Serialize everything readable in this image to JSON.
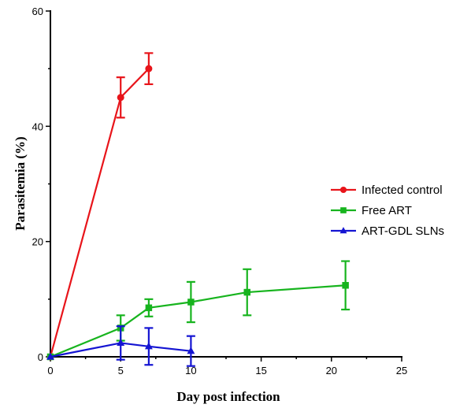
{
  "chart_data": {
    "type": "line",
    "xlabel": "Day post infection",
    "ylabel": "Parasitemia (%)",
    "xlim": [
      0,
      25
    ],
    "ylim": [
      0,
      60
    ],
    "xticks": [
      "0",
      "5",
      "10",
      "15",
      "20",
      "25"
    ],
    "yticks": [
      "0",
      "20",
      "40",
      "60"
    ],
    "grid": false,
    "legend_position": "right",
    "series": [
      {
        "name": "Infected control",
        "color": "#e8141a",
        "marker": "circle",
        "x": [
          0,
          5,
          7
        ],
        "y": [
          0,
          45,
          50
        ],
        "err": [
          0,
          3.5,
          2.7
        ]
      },
      {
        "name": "Free ART",
        "color": "#17b41e",
        "marker": "square",
        "x": [
          0,
          5,
          7,
          10,
          14,
          21
        ],
        "y": [
          0,
          5,
          8.5,
          9.5,
          11.2,
          12.4
        ],
        "err": [
          0,
          2.2,
          1.5,
          3.5,
          4,
          4.2
        ]
      },
      {
        "name": "ART-GDL SLNs",
        "color": "#1414d2",
        "marker": "triangle",
        "x": [
          0,
          5,
          7,
          10
        ],
        "y": [
          0,
          2.4,
          1.8,
          1.0
        ],
        "err": [
          0,
          2.9,
          3.2,
          2.6
        ]
      }
    ]
  }
}
